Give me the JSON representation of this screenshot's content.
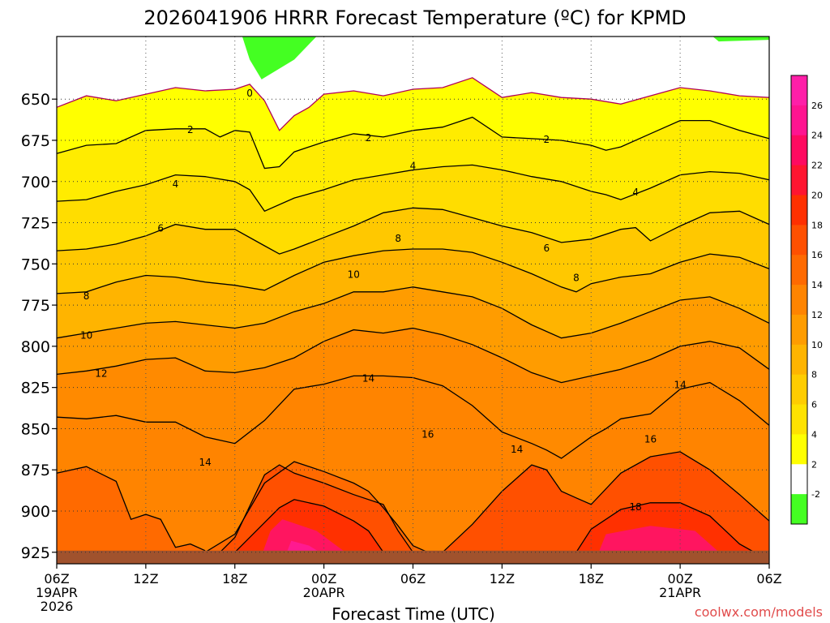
{
  "chart_data": {
    "type": "contour",
    "title": "2026041906 HRRR Forecast Temperature (ºC) for KPMD",
    "xlabel": "Forecast Time (UTC)",
    "credit": "coolwx.com/models",
    "x_ticks": [
      {
        "hour": 0,
        "label": "06Z",
        "sub": [
          "19APR",
          "2026"
        ]
      },
      {
        "hour": 6,
        "label": "12Z",
        "sub": []
      },
      {
        "hour": 12,
        "label": "18Z",
        "sub": []
      },
      {
        "hour": 18,
        "label": "00Z",
        "sub": [
          "20APR"
        ]
      },
      {
        "hour": 24,
        "label": "06Z",
        "sub": []
      },
      {
        "hour": 30,
        "label": "12Z",
        "sub": []
      },
      {
        "hour": 36,
        "label": "18Z",
        "sub": []
      },
      {
        "hour": 42,
        "label": "00Z",
        "sub": [
          "21APR"
        ]
      },
      {
        "hour": 48,
        "label": "06Z",
        "sub": []
      }
    ],
    "xlim": [
      0,
      48
    ],
    "ylabel": "",
    "y_ticks": [
      650,
      675,
      700,
      725,
      750,
      775,
      800,
      825,
      850,
      875,
      900,
      925
    ],
    "ylim": [
      612,
      932
    ],
    "y_axis": "pressure (hPa), increasing downward",
    "colorbar": {
      "labels": [
        -2,
        2,
        4,
        6,
        8,
        10,
        12,
        14,
        16,
        18,
        20,
        22,
        24,
        26
      ],
      "colors": [
        "#44ff22",
        "#ffffff",
        "#ffff00",
        "#ffe200",
        "#ffcc00",
        "#ffb400",
        "#ff9c00",
        "#ff8400",
        "#ff6a00",
        "#ff5000",
        "#ff3000",
        "#ff1530",
        "#ff0a60",
        "#ff1490",
        "#ff1fa8"
      ]
    },
    "isotherms": [
      {
        "label": "0",
        "points": [
          [
            0,
            655
          ],
          [
            2,
            648
          ],
          [
            4,
            651
          ],
          [
            6,
            647
          ],
          [
            8,
            643
          ],
          [
            10,
            645
          ],
          [
            12,
            644
          ],
          [
            13,
            641
          ],
          [
            14,
            651
          ],
          [
            15,
            669
          ],
          [
            16,
            660
          ],
          [
            17,
            655
          ],
          [
            18,
            647
          ],
          [
            20,
            645
          ],
          [
            22,
            648
          ],
          [
            24,
            644
          ],
          [
            26,
            643
          ],
          [
            28,
            637
          ],
          [
            30,
            649
          ],
          [
            32,
            646
          ],
          [
            34,
            649
          ],
          [
            36,
            650
          ],
          [
            38,
            653
          ],
          [
            40,
            648
          ],
          [
            42,
            643
          ],
          [
            44,
            645
          ],
          [
            46,
            648
          ],
          [
            48,
            649
          ]
        ]
      },
      {
        "label": "2",
        "points": [
          [
            0,
            683
          ],
          [
            2,
            678
          ],
          [
            4,
            677
          ],
          [
            6,
            669
          ],
          [
            8,
            668
          ],
          [
            10,
            668
          ],
          [
            11,
            673
          ],
          [
            12,
            669
          ],
          [
            13,
            670
          ],
          [
            14,
            692
          ],
          [
            15,
            691
          ],
          [
            16,
            682
          ],
          [
            18,
            676
          ],
          [
            20,
            671
          ],
          [
            22,
            673
          ],
          [
            24,
            669
          ],
          [
            26,
            667
          ],
          [
            28,
            661
          ],
          [
            30,
            673
          ],
          [
            32,
            674
          ],
          [
            34,
            675
          ],
          [
            36,
            678
          ],
          [
            37,
            681
          ],
          [
            38,
            679
          ],
          [
            40,
            671
          ],
          [
            42,
            663
          ],
          [
            44,
            663
          ],
          [
            46,
            669
          ],
          [
            48,
            674
          ]
        ]
      },
      {
        "label": "4",
        "points": [
          [
            0,
            712
          ],
          [
            2,
            711
          ],
          [
            4,
            706
          ],
          [
            6,
            702
          ],
          [
            8,
            696
          ],
          [
            10,
            697
          ],
          [
            12,
            700
          ],
          [
            13,
            705
          ],
          [
            14,
            718
          ],
          [
            16,
            710
          ],
          [
            18,
            705
          ],
          [
            20,
            699
          ],
          [
            22,
            696
          ],
          [
            24,
            693
          ],
          [
            26,
            691
          ],
          [
            28,
            690
          ],
          [
            30,
            693
          ],
          [
            32,
            697
          ],
          [
            34,
            700
          ],
          [
            36,
            706
          ],
          [
            37,
            708
          ],
          [
            38,
            711
          ],
          [
            40,
            704
          ],
          [
            42,
            696
          ],
          [
            44,
            694
          ],
          [
            46,
            695
          ],
          [
            48,
            699
          ]
        ]
      },
      {
        "label": "6",
        "points": [
          [
            0,
            742
          ],
          [
            2,
            741
          ],
          [
            4,
            738
          ],
          [
            6,
            733
          ],
          [
            8,
            726
          ],
          [
            10,
            729
          ],
          [
            12,
            729
          ],
          [
            14,
            739
          ],
          [
            15,
            744
          ],
          [
            16,
            741
          ],
          [
            18,
            734
          ],
          [
            20,
            727
          ],
          [
            22,
            719
          ],
          [
            24,
            716
          ],
          [
            26,
            717
          ],
          [
            28,
            722
          ],
          [
            30,
            727
          ],
          [
            32,
            731
          ],
          [
            34,
            737
          ],
          [
            36,
            735
          ],
          [
            38,
            729
          ],
          [
            39,
            728
          ],
          [
            40,
            736
          ],
          [
            42,
            727
          ],
          [
            44,
            719
          ],
          [
            46,
            718
          ],
          [
            48,
            726
          ]
        ]
      },
      {
        "label": "8",
        "points": [
          [
            0,
            768
          ],
          [
            2,
            767
          ],
          [
            4,
            761
          ],
          [
            6,
            757
          ],
          [
            8,
            758
          ],
          [
            10,
            761
          ],
          [
            12,
            763
          ],
          [
            14,
            766
          ],
          [
            16,
            757
          ],
          [
            18,
            749
          ],
          [
            20,
            745
          ],
          [
            22,
            742
          ],
          [
            24,
            741
          ],
          [
            26,
            741
          ],
          [
            28,
            743
          ],
          [
            30,
            749
          ],
          [
            32,
            756
          ],
          [
            34,
            764
          ],
          [
            35,
            767
          ],
          [
            36,
            762
          ],
          [
            38,
            758
          ],
          [
            40,
            756
          ],
          [
            42,
            749
          ],
          [
            44,
            744
          ],
          [
            46,
            746
          ],
          [
            48,
            753
          ]
        ]
      },
      {
        "label": "10",
        "points": [
          [
            0,
            795
          ],
          [
            2,
            792
          ],
          [
            4,
            789
          ],
          [
            6,
            786
          ],
          [
            8,
            785
          ],
          [
            10,
            787
          ],
          [
            12,
            789
          ],
          [
            14,
            786
          ],
          [
            16,
            779
          ],
          [
            18,
            774
          ],
          [
            20,
            767
          ],
          [
            22,
            767
          ],
          [
            24,
            764
          ],
          [
            26,
            767
          ],
          [
            28,
            770
          ],
          [
            30,
            777
          ],
          [
            32,
            787
          ],
          [
            34,
            795
          ],
          [
            36,
            792
          ],
          [
            38,
            786
          ],
          [
            40,
            779
          ],
          [
            42,
            772
          ],
          [
            44,
            770
          ],
          [
            46,
            777
          ],
          [
            48,
            786
          ]
        ]
      },
      {
        "label": "12",
        "points": [
          [
            0,
            817
          ],
          [
            2,
            815
          ],
          [
            4,
            812
          ],
          [
            6,
            808
          ],
          [
            8,
            807
          ],
          [
            10,
            815
          ],
          [
            12,
            816
          ],
          [
            14,
            813
          ],
          [
            16,
            807
          ],
          [
            18,
            797
          ],
          [
            20,
            790
          ],
          [
            22,
            792
          ],
          [
            24,
            789
          ],
          [
            26,
            793
          ],
          [
            28,
            799
          ],
          [
            30,
            807
          ],
          [
            32,
            816
          ],
          [
            34,
            822
          ],
          [
            36,
            818
          ],
          [
            38,
            814
          ],
          [
            40,
            808
          ],
          [
            42,
            800
          ],
          [
            44,
            797
          ],
          [
            46,
            801
          ],
          [
            48,
            814
          ]
        ]
      },
      {
        "label": "14",
        "points": [
          [
            0,
            843
          ],
          [
            2,
            844
          ],
          [
            4,
            842
          ],
          [
            6,
            846
          ],
          [
            8,
            846
          ],
          [
            10,
            855
          ],
          [
            12,
            859
          ],
          [
            14,
            845
          ],
          [
            16,
            826
          ],
          [
            18,
            823
          ],
          [
            20,
            818
          ],
          [
            22,
            818
          ],
          [
            24,
            819
          ],
          [
            26,
            824
          ],
          [
            28,
            836
          ],
          [
            30,
            852
          ],
          [
            32,
            859
          ],
          [
            33,
            863
          ],
          [
            34,
            868
          ],
          [
            36,
            855
          ],
          [
            37,
            850
          ],
          [
            38,
            844
          ],
          [
            40,
            841
          ],
          [
            42,
            826
          ],
          [
            44,
            822
          ],
          [
            46,
            833
          ],
          [
            48,
            848
          ]
        ]
      },
      {
        "label": "14",
        "points": [
          [
            0,
            877
          ],
          [
            2,
            873
          ],
          [
            4,
            882
          ],
          [
            5,
            905
          ],
          [
            6,
            902
          ],
          [
            7,
            905
          ],
          [
            8,
            922
          ],
          [
            9,
            920
          ],
          [
            10,
            924
          ]
        ]
      },
      {
        "label": "14",
        "points": [
          [
            10,
            925
          ],
          [
            12,
            914
          ],
          [
            14,
            883
          ],
          [
            16,
            870
          ],
          [
            18,
            876
          ],
          [
            20,
            883
          ],
          [
            21,
            888
          ],
          [
            22,
            898
          ],
          [
            23,
            909
          ],
          [
            24,
            921
          ],
          [
            25,
            925
          ]
        ]
      },
      {
        "label": "16",
        "points": [
          [
            11,
            925
          ],
          [
            12,
            916
          ],
          [
            14,
            878
          ],
          [
            15,
            872
          ],
          [
            16,
            877
          ],
          [
            18,
            883
          ],
          [
            20,
            890
          ],
          [
            22,
            896
          ],
          [
            23,
            912
          ],
          [
            24,
            925
          ]
        ]
      },
      {
        "label": "16",
        "points": [
          [
            26,
            925
          ],
          [
            28,
            908
          ],
          [
            30,
            888
          ],
          [
            32,
            872
          ],
          [
            33,
            875
          ],
          [
            34,
            888
          ],
          [
            35,
            892
          ],
          [
            36,
            896
          ],
          [
            38,
            877
          ],
          [
            40,
            867
          ],
          [
            42,
            864
          ],
          [
            44,
            875
          ],
          [
            46,
            890
          ],
          [
            48,
            906
          ]
        ]
      },
      {
        "label": "18",
        "points": [
          [
            12,
            925
          ],
          [
            14,
            907
          ],
          [
            15,
            898
          ],
          [
            16,
            893
          ],
          [
            18,
            897
          ],
          [
            20,
            906
          ],
          [
            21,
            912
          ],
          [
            22,
            925
          ]
        ]
      },
      {
        "label": "18",
        "points": [
          [
            35,
            925
          ],
          [
            36,
            911
          ],
          [
            38,
            899
          ],
          [
            40,
            895
          ],
          [
            42,
            895
          ],
          [
            44,
            903
          ],
          [
            46,
            920
          ],
          [
            47,
            925
          ]
        ]
      }
    ]
  }
}
